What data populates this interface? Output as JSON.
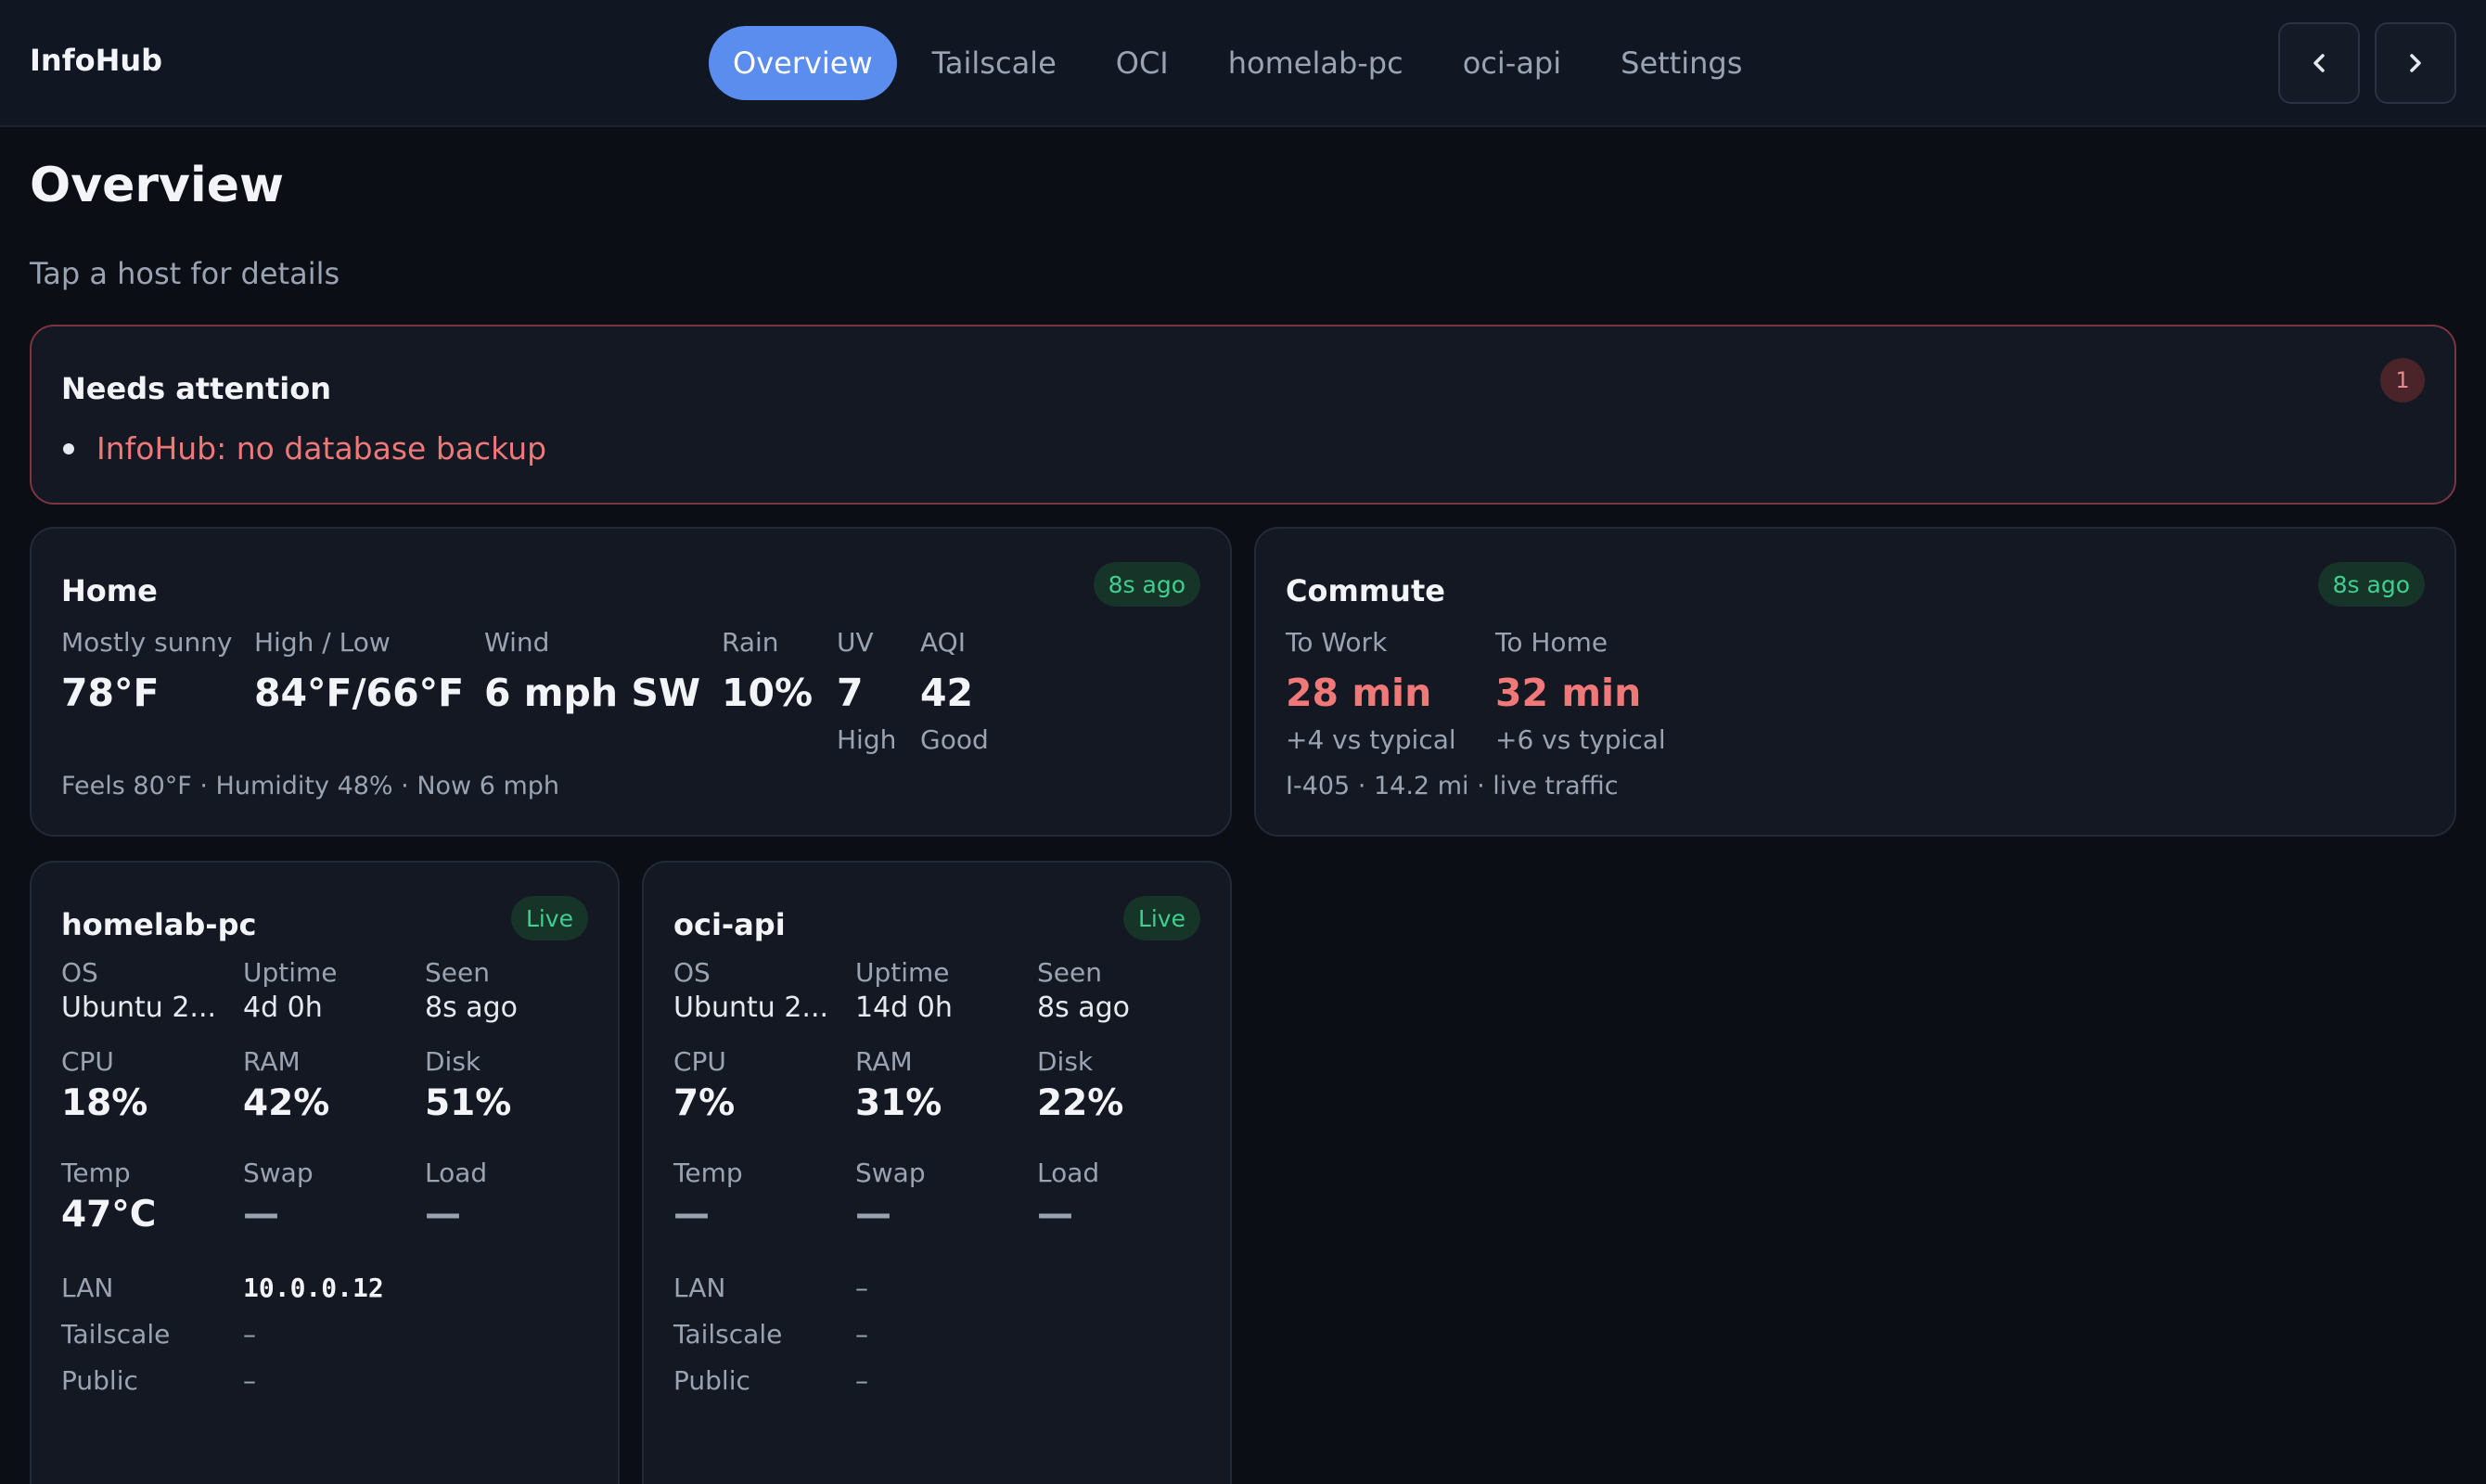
{
  "app": {
    "brand": "InfoHub"
  },
  "nav": {
    "tabs": [
      {
        "label": "Overview",
        "active": true
      },
      {
        "label": "Tailscale"
      },
      {
        "label": "OCI"
      },
      {
        "label": "homelab-pc"
      },
      {
        "label": "oci-api"
      },
      {
        "label": "Settings"
      }
    ],
    "prev_icon": "chevron-left-icon",
    "next_icon": "chevron-right-icon"
  },
  "page": {
    "title": "Overview",
    "subtitle": "Tap a host for details"
  },
  "attention": {
    "title": "Needs attention",
    "count": "1",
    "items": [
      "InfoHub: no database backup"
    ]
  },
  "home": {
    "title": "Home",
    "updated": "8s ago",
    "metrics": {
      "condition": {
        "label": "Mostly sunny",
        "value": "78°F"
      },
      "highlow": {
        "label": "High / Low",
        "value": "84°F/66°F"
      },
      "wind": {
        "label": "Wind",
        "value": "6 mph SW"
      },
      "rain": {
        "label": "Rain",
        "value": "10%"
      },
      "uv": {
        "label": "UV",
        "value": "7",
        "sub": "High"
      },
      "aqi": {
        "label": "AQI",
        "value": "42",
        "sub": "Good"
      }
    },
    "footnote": "Feels 80°F · Humidity 48% · Now 6 mph"
  },
  "commute": {
    "title": "Commute",
    "updated": "8s ago",
    "to_work": {
      "label": "To Work",
      "value": "28 min",
      "sub": "+4 vs typical"
    },
    "to_home": {
      "label": "To Home",
      "value": "32 min",
      "sub": "+6 vs typical"
    },
    "footnote": "I-405 · 14.2 mi · live traffic"
  },
  "hosts": [
    {
      "name": "homelab-pc",
      "status": "Live",
      "os": {
        "label": "OS",
        "value": "Ubuntu 2..."
      },
      "uptime": {
        "label": "Uptime",
        "value": "4d 0h"
      },
      "seen": {
        "label": "Seen",
        "value": "8s ago"
      },
      "cpu": {
        "label": "CPU",
        "value": "18%"
      },
      "ram": {
        "label": "RAM",
        "value": "42%"
      },
      "disk": {
        "label": "Disk",
        "value": "51%"
      },
      "temp": {
        "label": "Temp",
        "value": "47°C"
      },
      "swap": {
        "label": "Swap",
        "value": "—"
      },
      "load": {
        "label": "Load",
        "value": "—"
      },
      "lan": {
        "label": "LAN",
        "value": "10.0.0.12"
      },
      "tailscale": {
        "label": "Tailscale",
        "value": "–"
      },
      "public": {
        "label": "Public",
        "value": "–"
      }
    },
    {
      "name": "oci-api",
      "status": "Live",
      "os": {
        "label": "OS",
        "value": "Ubuntu 2..."
      },
      "uptime": {
        "label": "Uptime",
        "value": "14d 0h"
      },
      "seen": {
        "label": "Seen",
        "value": "8s ago"
      },
      "cpu": {
        "label": "CPU",
        "value": "7%"
      },
      "ram": {
        "label": "RAM",
        "value": "31%"
      },
      "disk": {
        "label": "Disk",
        "value": "22%"
      },
      "temp": {
        "label": "Temp",
        "value": "—"
      },
      "swap": {
        "label": "Swap",
        "value": "—"
      },
      "load": {
        "label": "Load",
        "value": "—"
      },
      "lan": {
        "label": "LAN",
        "value": "–"
      },
      "tailscale": {
        "label": "Tailscale",
        "value": "–"
      },
      "public": {
        "label": "Public",
        "value": "–"
      }
    }
  ]
}
